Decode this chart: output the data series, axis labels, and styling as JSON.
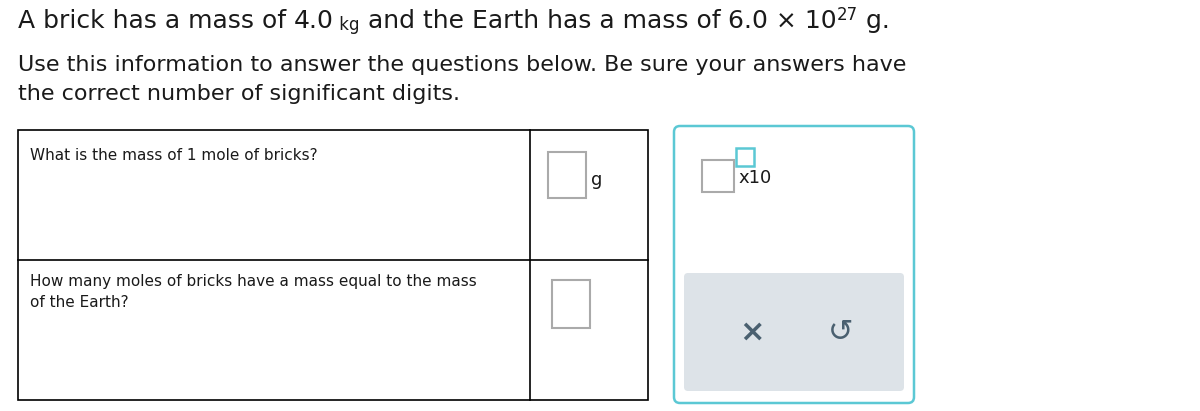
{
  "bg_color": "#ffffff",
  "text_color": "#1a1a1a",
  "border_color": "#000000",
  "popup_border_color": "#5bc8d4",
  "input_border_color_gray": "#aaaaaa",
  "input_border_color_blue": "#5bc8d4",
  "button_area_color": "#dde3e8",
  "button_text_color": "#4a6070",
  "subtitle": "Use this information to answer the questions below. Be sure your answers have\nthe correct number of significant digits.",
  "q1_text": "What is the mass of 1 mole of bricks?",
  "q2_text": "How many moles of bricks have a mass equal to the mass\nof the Earth?"
}
